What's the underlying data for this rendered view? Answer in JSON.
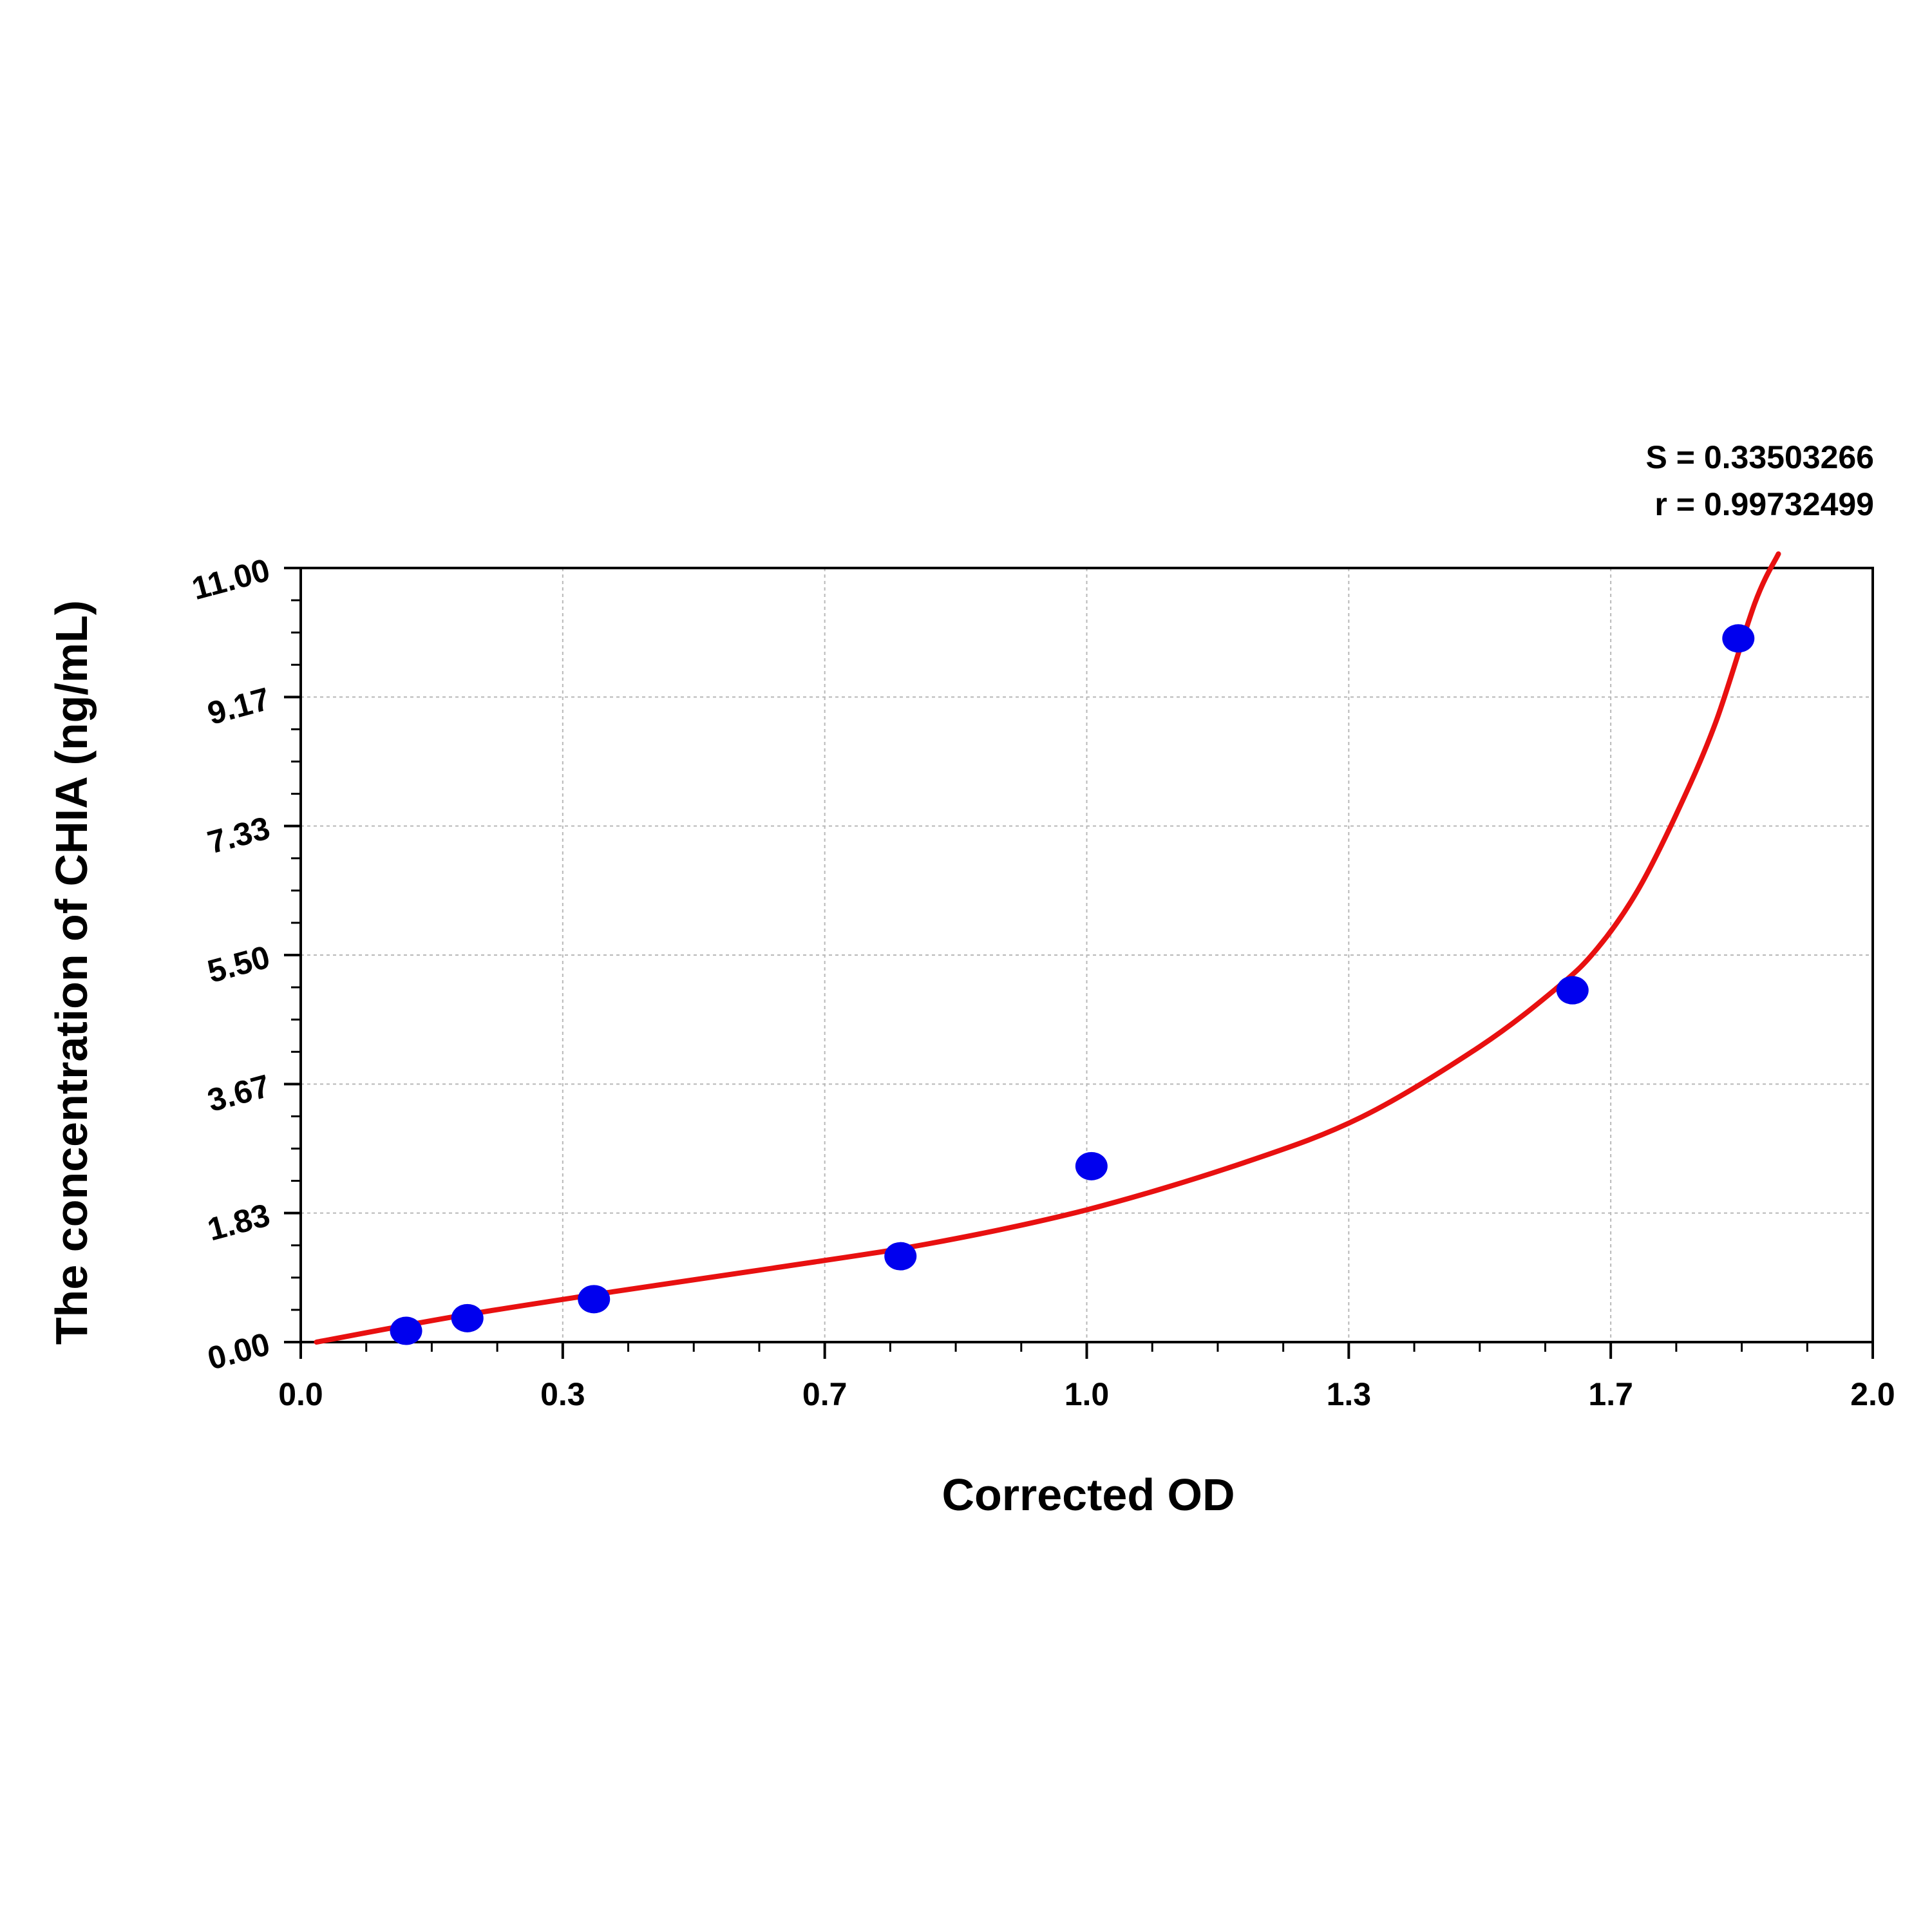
{
  "chart_data": {
    "type": "scatter",
    "title": "",
    "xlabel": "Corrected OD",
    "ylabel": "The concentration of CHIA (ng/mL)",
    "xlim": [
      0.0,
      2.0
    ],
    "ylim": [
      0.0,
      11.0
    ],
    "x_ticks": [
      "0.0",
      "0.3",
      "0.7",
      "1.0",
      "1.3",
      "1.7",
      "2.0"
    ],
    "y_ticks": [
      "0.00",
      "1.83",
      "3.67",
      "5.50",
      "7.33",
      "9.17",
      "11.00"
    ],
    "grid": true,
    "stats": [
      "S = 0.33503266",
      "r = 0.99732499"
    ],
    "series": [
      {
        "kind": "points",
        "color": "#0000ee",
        "x": [
          0.134,
          0.212,
          0.373,
          0.763,
          1.006,
          1.618,
          1.829
        ],
        "y": [
          0.16,
          0.34,
          0.61,
          1.22,
          2.5,
          5.0,
          10.0
        ]
      },
      {
        "kind": "fit-curve",
        "color": "#e81010",
        "x": [
          0.02,
          0.2,
          0.4,
          0.6,
          0.8,
          1.0,
          1.2,
          1.35,
          1.5,
          1.6,
          1.65,
          1.7,
          1.75,
          1.8,
          1.85,
          1.88
        ],
        "y": [
          0.0,
          0.37,
          0.72,
          1.05,
          1.4,
          1.88,
          2.55,
          3.2,
          4.2,
          5.05,
          5.6,
          6.4,
          7.5,
          8.8,
          10.5,
          11.2
        ]
      }
    ]
  }
}
